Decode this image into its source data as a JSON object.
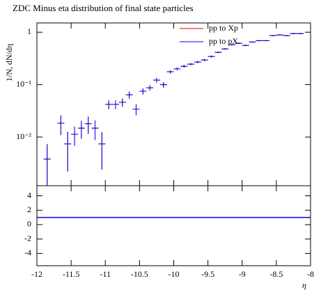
{
  "chart_data": {
    "type": "scatter",
    "title": "ZDC Minus eta distribution of final state particles",
    "y_label": "1/N, dN/dη",
    "x_label": "η",
    "log_y": true,
    "legend": "upper right",
    "xlim": [
      -12,
      -8
    ],
    "xticks": [
      -12,
      -11.5,
      -11,
      -10.5,
      -10,
      -9.5,
      -9,
      -8.5,
      -8
    ],
    "ylim": [
      0.00118,
      1.5
    ],
    "yticks": [
      {
        "value": 0.01,
        "label": "10⁻²"
      },
      {
        "value": 0.1,
        "label": "10⁻¹"
      },
      1
    ],
    "xerr": 0.05,
    "x": [
      -11.85,
      -11.65,
      -11.55,
      -11.45,
      -11.35,
      -11.25,
      -11.15,
      -11.05,
      -10.95,
      -10.85,
      -10.75,
      -10.65,
      -10.55,
      -10.45,
      -10.35,
      -10.25,
      -10.15,
      -10.05,
      -9.95,
      -9.85,
      -9.75,
      -9.65,
      -9.55,
      -9.45,
      -9.35,
      -9.25,
      -9.15,
      -9.05,
      -8.95,
      -8.85,
      -8.75,
      -8.65,
      -8.55,
      -8.45,
      -8.35,
      -8.25,
      -8.15
    ],
    "series": [
      {
        "name": "pp to Xp",
        "color": "#cc0000",
        "values": [
          0.0038,
          0.0184,
          0.0074,
          0.0113,
          0.0148,
          0.018,
          0.0148,
          0.0074,
          0.042,
          0.042,
          0.046,
          0.064,
          0.034,
          0.075,
          0.087,
          0.122,
          0.1,
          0.176,
          0.2,
          0.224,
          0.246,
          0.27,
          0.295,
          0.344,
          0.413,
          0.48,
          0.577,
          0.614,
          0.56,
          0.65,
          0.69,
          0.69,
          0.86,
          0.885,
          0.86,
          0.94,
          0.94
        ],
        "yerr": [
          0.0035,
          0.0075,
          0.0052,
          0.0045,
          0.0055,
          0.0065,
          0.006,
          0.005,
          0.008,
          0.008,
          0.008,
          0.01,
          0.008,
          0.01,
          0.01,
          0.013,
          0.012,
          0.013,
          0.013,
          0.013,
          0.013,
          0.014,
          0.014,
          0.015,
          0.016,
          0.017,
          0.018,
          0.02,
          0.02,
          0.02,
          0.02,
          0.02,
          0.025,
          0.025,
          0.025,
          0.03,
          0.03
        ]
      },
      {
        "name": "pp to pX",
        "color": "#0000ee",
        "values": [
          0.0038,
          0.0184,
          0.0074,
          0.0113,
          0.0148,
          0.018,
          0.0148,
          0.0074,
          0.042,
          0.042,
          0.046,
          0.064,
          0.034,
          0.075,
          0.087,
          0.122,
          0.1,
          0.176,
          0.2,
          0.224,
          0.246,
          0.27,
          0.295,
          0.344,
          0.413,
          0.48,
          0.577,
          0.614,
          0.56,
          0.65,
          0.69,
          0.69,
          0.86,
          0.885,
          0.86,
          0.94,
          0.94
        ],
        "yerr": [
          0.0035,
          0.0075,
          0.0052,
          0.0045,
          0.0055,
          0.0065,
          0.006,
          0.005,
          0.008,
          0.008,
          0.008,
          0.01,
          0.008,
          0.01,
          0.01,
          0.013,
          0.012,
          0.013,
          0.013,
          0.013,
          0.013,
          0.014,
          0.014,
          0.015,
          0.016,
          0.017,
          0.018,
          0.02,
          0.02,
          0.02,
          0.02,
          0.02,
          0.025,
          0.025,
          0.025,
          0.03,
          0.03
        ]
      }
    ],
    "ratio": {
      "ylim": [
        -5.7,
        5.4
      ],
      "yticks": [
        -4,
        -2,
        0,
        2,
        4
      ],
      "reference": 1,
      "color": "#0000ee"
    }
  }
}
